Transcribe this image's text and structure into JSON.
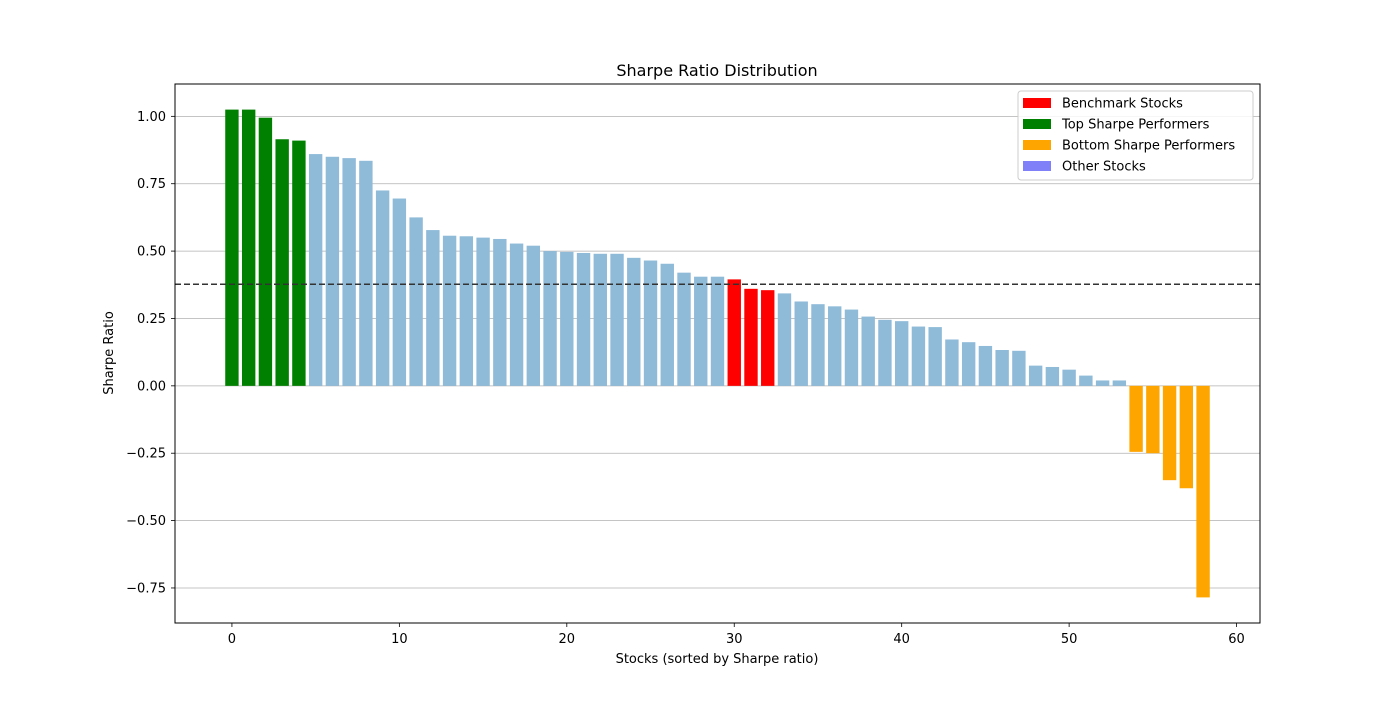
{
  "chart_data": {
    "type": "bar",
    "title": "Sharpe Ratio Distribution",
    "xlabel": "Stocks (sorted by Sharpe ratio)",
    "ylabel": "Sharpe Ratio",
    "xlim": [
      -3.4,
      61.4
    ],
    "ylim": [
      -0.88,
      1.12
    ],
    "x_ticks": [
      0,
      10,
      20,
      30,
      40,
      50,
      60
    ],
    "y_ticks": [
      -0.75,
      -0.5,
      -0.25,
      0.0,
      0.25,
      0.5,
      0.75,
      1.0
    ],
    "y_tick_labels": [
      "−0.75",
      "−0.50",
      "−0.25",
      "0.00",
      "0.25",
      "0.50",
      "0.75",
      "1.00"
    ],
    "grid": "y",
    "reference_line": {
      "y": 0.377,
      "style": "dashed",
      "color": "#333333"
    },
    "legend": {
      "placement": "top-right",
      "entries": [
        {
          "label": "Benchmark Stocks",
          "color": "#ff0000"
        },
        {
          "label": "Top Sharpe Performers",
          "color": "#008000"
        },
        {
          "label": "Bottom Sharpe Performers",
          "color": "#ffa500"
        },
        {
          "label": "Other Stocks",
          "color": "#8080f8"
        }
      ]
    },
    "colors": {
      "top": "#008000",
      "benchmark": "#ff0000",
      "bottom": "#ffa500",
      "other": "#8fbbd9"
    },
    "series": [
      {
        "name": "Top Sharpe Performers",
        "x": [
          0,
          1,
          2,
          3,
          4
        ],
        "values": [
          1.025,
          1.025,
          0.995,
          0.915,
          0.91
        ]
      },
      {
        "name": "Other Stocks",
        "x": [
          5,
          6,
          7,
          8,
          9,
          10,
          11,
          12,
          13,
          14,
          15,
          16,
          17,
          18,
          19,
          20,
          21,
          22,
          23,
          24,
          25,
          26,
          27,
          28,
          29
        ],
        "values": [
          0.86,
          0.85,
          0.845,
          0.835,
          0.725,
          0.695,
          0.625,
          0.578,
          0.557,
          0.555,
          0.55,
          0.545,
          0.528,
          0.52,
          0.5,
          0.497,
          0.493,
          0.49,
          0.49,
          0.475,
          0.465,
          0.453,
          0.42,
          0.405,
          0.405
        ]
      },
      {
        "name": "Benchmark Stocks",
        "x": [
          30,
          31,
          32
        ],
        "values": [
          0.395,
          0.36,
          0.355
        ]
      },
      {
        "name": "Other Stocks",
        "x": [
          33,
          34,
          35,
          36,
          37,
          38,
          39,
          40,
          41,
          42,
          43,
          44,
          45,
          46,
          47,
          48,
          49,
          50,
          51,
          52,
          53
        ],
        "values": [
          0.343,
          0.313,
          0.303,
          0.295,
          0.283,
          0.257,
          0.245,
          0.24,
          0.22,
          0.218,
          0.172,
          0.162,
          0.148,
          0.133,
          0.13,
          0.075,
          0.07,
          0.06,
          0.038,
          0.02,
          0.02
        ]
      },
      {
        "name": "Bottom Sharpe Performers",
        "x": [
          54,
          55,
          56,
          57,
          58
        ],
        "values": [
          -0.245,
          -0.25,
          -0.35,
          -0.38,
          -0.785
        ]
      }
    ]
  }
}
